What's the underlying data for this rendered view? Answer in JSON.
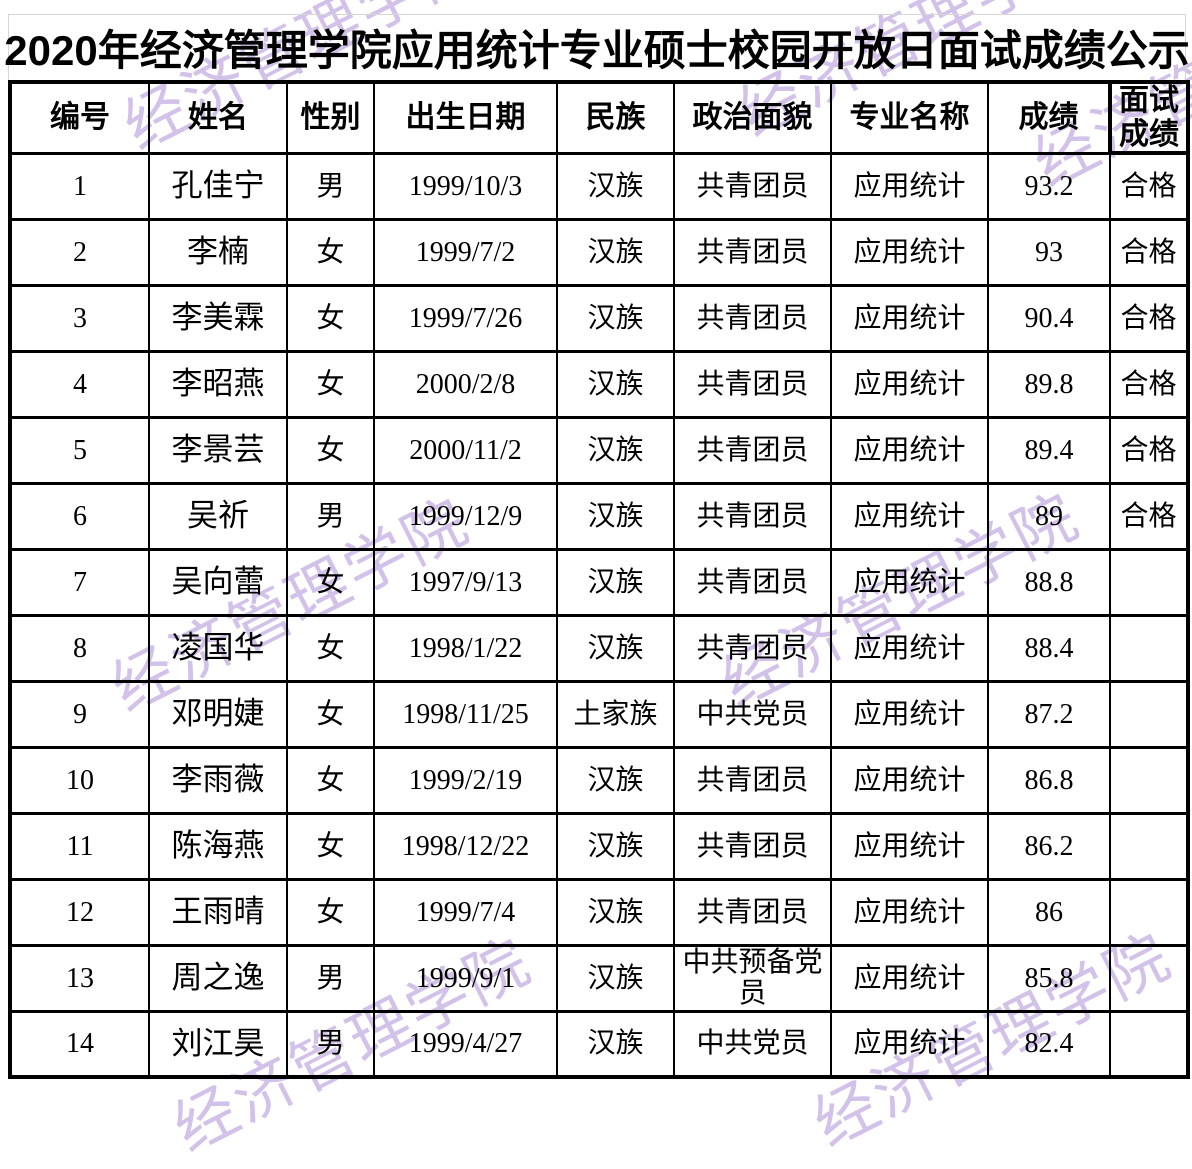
{
  "title": "2020年经济管理学院应用统计专业硕士校园开放日面试成绩公示",
  "watermark": {
    "text": "经济管理学院",
    "color": "#d2c1e8"
  },
  "table": {
    "columns": [
      "编号",
      "姓名",
      "性别",
      "出生日期",
      "民族",
      "政治面貌",
      "专业名称",
      "成绩",
      "面试成绩"
    ],
    "rows": [
      [
        "1",
        "孔佳宁",
        "男",
        "1999/10/3",
        "汉族",
        "共青团员",
        "应用统计",
        "93.2",
        "合格"
      ],
      [
        "2",
        "李楠",
        "女",
        "1999/7/2",
        "汉族",
        "共青团员",
        "应用统计",
        "93",
        "合格"
      ],
      [
        "3",
        "李美霖",
        "女",
        "1999/7/26",
        "汉族",
        "共青团员",
        "应用统计",
        "90.4",
        "合格"
      ],
      [
        "4",
        "李昭燕",
        "女",
        "2000/2/8",
        "汉族",
        "共青团员",
        "应用统计",
        "89.8",
        "合格"
      ],
      [
        "5",
        "李景芸",
        "女",
        "2000/11/2",
        "汉族",
        "共青团员",
        "应用统计",
        "89.4",
        "合格"
      ],
      [
        "6",
        "吴祈",
        "男",
        "1999/12/9",
        "汉族",
        "共青团员",
        "应用统计",
        "89",
        "合格"
      ],
      [
        "7",
        "吴向蕾",
        "女",
        "1997/9/13",
        "汉族",
        "共青团员",
        "应用统计",
        "88.8",
        ""
      ],
      [
        "8",
        "凌国华",
        "女",
        "1998/1/22",
        "汉族",
        "共青团员",
        "应用统计",
        "88.4",
        ""
      ],
      [
        "9",
        "邓明婕",
        "女",
        "1998/11/25",
        "土家族",
        "中共党员",
        "应用统计",
        "87.2",
        ""
      ],
      [
        "10",
        "李雨薇",
        "女",
        "1999/2/19",
        "汉族",
        "共青团员",
        "应用统计",
        "86.8",
        ""
      ],
      [
        "11",
        "陈海燕",
        "女",
        "1998/12/22",
        "汉族",
        "共青团员",
        "应用统计",
        "86.2",
        ""
      ],
      [
        "12",
        "王雨晴",
        "女",
        "1999/7/4",
        "汉族",
        "共青团员",
        "应用统计",
        "86",
        ""
      ],
      [
        "13",
        "周之逸",
        "男",
        "1999/9/1",
        "汉族",
        "中共预备党员",
        "应用统计",
        "85.8",
        ""
      ],
      [
        "14",
        "刘江昊",
        "男",
        "1999/4/27",
        "汉族",
        "中共党员",
        "应用统计",
        "82.4",
        ""
      ]
    ]
  }
}
